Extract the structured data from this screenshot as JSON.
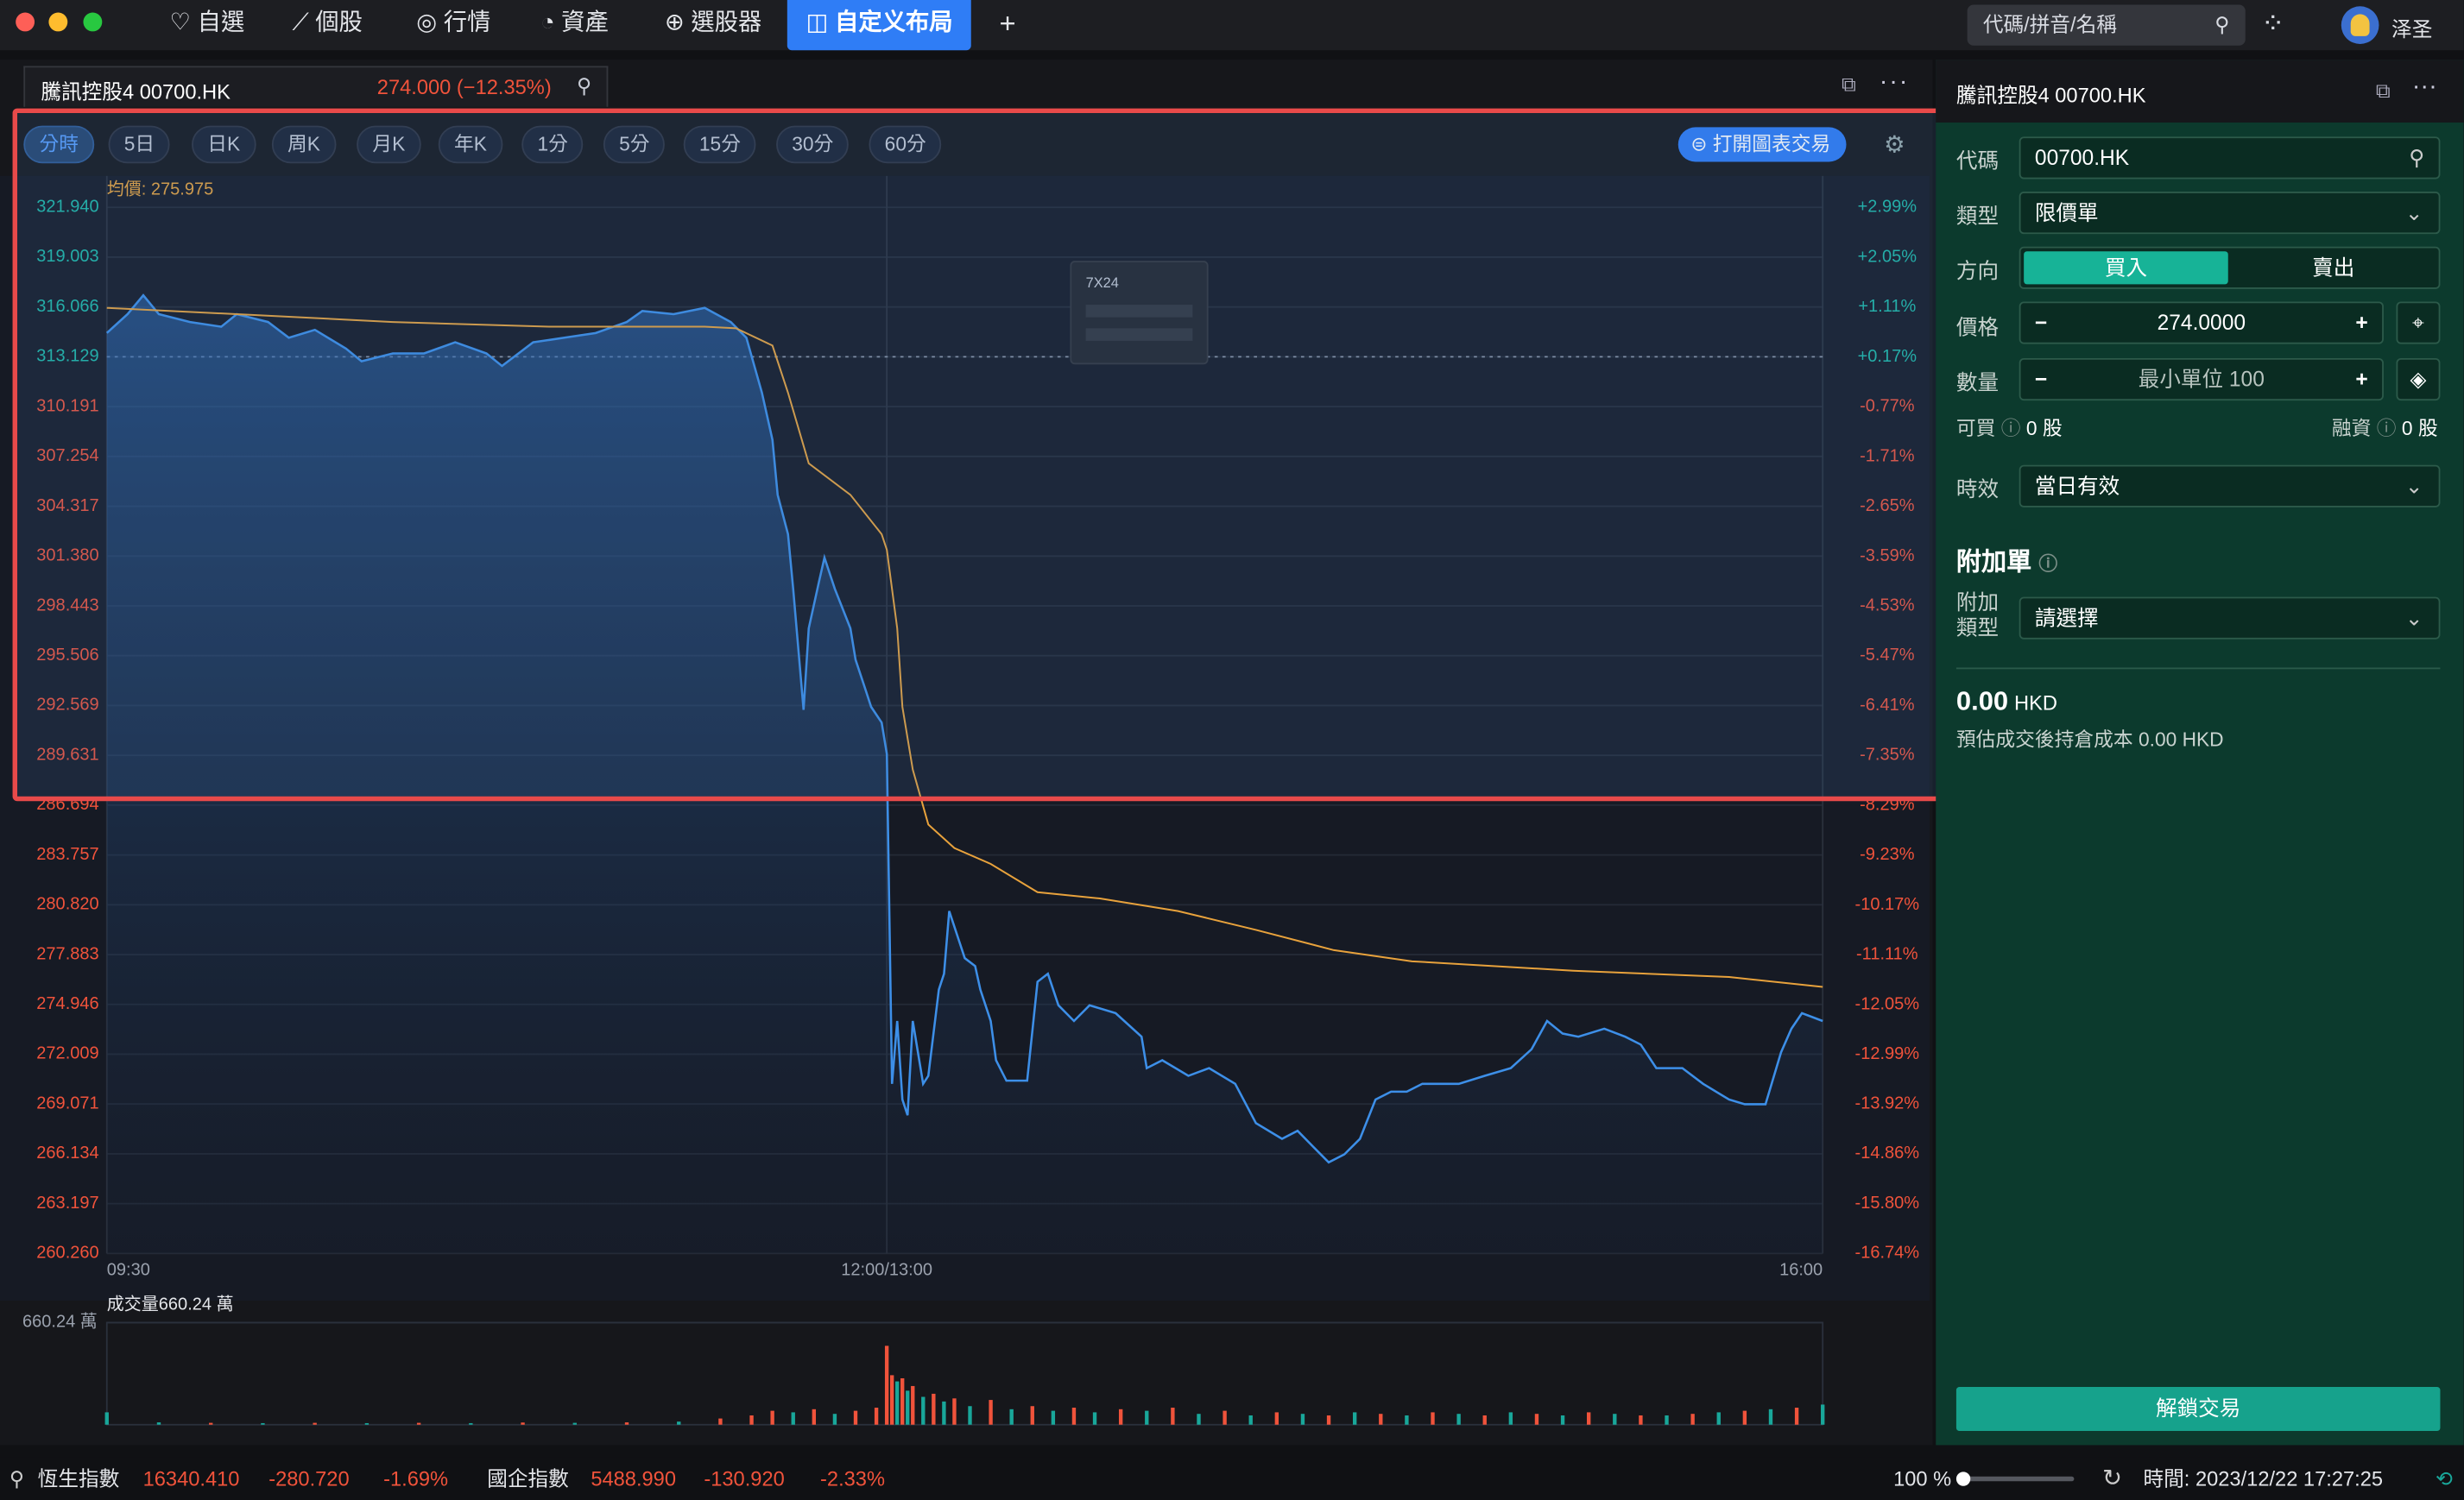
{
  "window": {
    "tabs": [
      "自選",
      "個股",
      "行情",
      "資產",
      "選股器",
      "自定义布局"
    ],
    "active_tab": 5,
    "search_placeholder": "代碼/拼音/名稱",
    "user": "泽圣"
  },
  "chart_panel": {
    "tab_title": "騰訊控股4 00700.HK",
    "tab_quote": "274.000 (−12.35%)",
    "periods": [
      "分時",
      "5日",
      "日K",
      "周K",
      "月K",
      "年K",
      "1分",
      "5分",
      "15分",
      "30分",
      "60分"
    ],
    "active_period": 0,
    "trade_button": "打開圖表交易",
    "popup_title": "7X24"
  },
  "chart_data": [
    {
      "type": "line",
      "base_value": 313.129,
      "up_color": "#1fb8a6",
      "down_color": "#f0533b",
      "xlim": [
        0,
        330
      ],
      "xticks": [
        {
          "value": 0,
          "label": "09:30"
        },
        {
          "value": 150,
          "label": "12:00/13:00"
        },
        {
          "value": 330,
          "label": "16:00"
        }
      ],
      "ylim": [
        260.26,
        321.94
      ],
      "yticks": [
        {
          "value": 321.94,
          "label": "321.940"
        },
        319.003,
        316.066,
        313.129,
        310.191,
        307.254,
        304.317,
        {
          "value": 301.38,
          "label": "301.380"
        },
        298.443,
        295.506,
        292.569,
        289.631,
        286.694,
        283.757,
        {
          "value": 280.82,
          "label": "280.820"
        },
        277.883,
        274.946,
        272.009,
        269.071,
        266.134,
        263.197,
        {
          "value": 260.26,
          "label": "260.260"
        }
      ],
      "y2lim": [
        -16.74,
        2.99
      ],
      "y2ticks": [
        {
          "value": 2.99,
          "label": "+2.99%"
        },
        {
          "value": 2.05,
          "label": "+2.05%"
        },
        {
          "value": 1.11,
          "label": "+1.11%"
        },
        {
          "value": 0.17,
          "label": "+0.17%"
        },
        {
          "value": -0.77,
          "label": "-0.77%"
        },
        {
          "value": -1.71,
          "label": "-1.71%"
        },
        {
          "value": -2.65,
          "label": "-2.65%"
        },
        {
          "value": -3.59,
          "label": "-3.59%"
        },
        {
          "value": -4.53,
          "label": "-4.53%"
        },
        {
          "value": -5.47,
          "label": "-5.47%"
        },
        {
          "value": -6.41,
          "label": "-6.41%"
        },
        {
          "value": -7.35,
          "label": "-7.35%"
        },
        {
          "value": -8.29,
          "label": "-8.29%"
        },
        {
          "value": -9.23,
          "label": "-9.23%"
        },
        {
          "value": -10.17,
          "label": "-10.17%"
        },
        {
          "value": -11.11,
          "label": "-11.11%"
        },
        {
          "value": -12.05,
          "label": "-12.05%"
        },
        {
          "value": -12.99,
          "label": "-12.99%"
        },
        {
          "value": -13.92,
          "label": "-13.92%"
        },
        {
          "value": -14.86,
          "label": "-14.86%"
        },
        {
          "value": -15.8,
          "label": "-15.80%"
        },
        {
          "value": -16.74,
          "label": "-16.74%"
        }
      ],
      "series": [
        {
          "color": "#3d8fe8",
          "x": [
            0,
            4,
            7,
            10,
            16,
            22,
            25,
            31,
            35,
            40,
            46,
            49,
            55,
            61,
            67,
            73,
            76,
            82,
            88,
            94,
            100,
            103,
            109,
            115,
            120,
            123,
            126,
            128,
            129,
            131,
            132,
            134,
            135,
            137,
            138,
            140,
            143,
            144,
            146,
            147,
            149,
            150,
            151,
            152,
            153,
            154,
            155,
            157,
            158,
            160,
            161,
            162,
            164,
            165,
            167,
            168,
            170,
            171,
            173,
            177,
            179,
            181,
            183,
            186,
            189,
            194,
            199,
            200,
            203,
            208,
            212,
            217,
            221,
            226,
            229,
            232,
            235,
            238,
            241,
            244,
            247,
            250,
            253,
            256,
            260,
            265,
            270,
            274,
            277,
            280,
            283,
            288,
            292,
            295,
            298,
            303,
            307,
            312,
            315,
            319,
            322,
            324,
            326,
            330
          ],
          "values": [
            314.53,
            315.64,
            316.75,
            315.64,
            315.18,
            314.9,
            315.64,
            315.18,
            314.25,
            314.72,
            313.61,
            312.86,
            313.33,
            313.33,
            313.98,
            313.33,
            312.59,
            313.98,
            314.25,
            314.53,
            315.18,
            315.83,
            315.64,
            316.01,
            315.18,
            314.25,
            311.01,
            308.23,
            304.99,
            302.67,
            299.44,
            292.31,
            297.12,
            299.9,
            301.29,
            299.44,
            297.12,
            295.27,
            293.42,
            292.49,
            291.56,
            289.71,
            270.26,
            273.97,
            269.34,
            268.41,
            273.97,
            270.26,
            270.73,
            275.82,
            276.75,
            280.45,
            278.6,
            277.67,
            277.21,
            275.82,
            273.97,
            271.65,
            270.45,
            270.45,
            276.28,
            276.75,
            274.89,
            273.97,
            274.89,
            274.43,
            273.04,
            271.19,
            271.65,
            270.73,
            271.19,
            270.26,
            267.95,
            267.02,
            267.49,
            266.56,
            265.63,
            266.1,
            267.02,
            269.34,
            269.8,
            269.8,
            270.26,
            270.26,
            270.26,
            270.73,
            271.19,
            272.3,
            273.97,
            273.23,
            273.04,
            273.51,
            273.04,
            272.58,
            271.19,
            271.19,
            270.26,
            269.34,
            269.06,
            269.06,
            272.12,
            273.51,
            274.43,
            273.97
          ]
        },
        {
          "name": "均價: 275.975",
          "color": "#e8a23c",
          "x": [
            0,
            25,
            55,
            85,
            115,
            121,
            128,
            131,
            135,
            143,
            149,
            150,
            152,
            153,
            155,
            158,
            163,
            170,
            179,
            191,
            206,
            221,
            236,
            251,
            282,
            312,
            330
          ],
          "values": [
            316.01,
            315.64,
            315.18,
            314.9,
            314.9,
            314.81,
            313.79,
            311.01,
            306.84,
            304.99,
            302.67,
            301.75,
            297.12,
            292.49,
            288.79,
            285.55,
            284.16,
            283.23,
            281.56,
            281.19,
            280.45,
            279.34,
            278.14,
            277.49,
            276.93,
            276.56,
            275.975
          ]
        }
      ]
    },
    {
      "type": "bar",
      "title": "成交量660.24 萬",
      "xlim": [
        0,
        330
      ],
      "ylim": [
        0,
        660.24
      ],
      "yticks": [
        {
          "value": 660.24,
          "label": "660.24 萬"
        }
      ],
      "x": [
        0,
        10,
        20,
        30,
        40,
        50,
        60,
        70,
        80,
        90,
        100,
        110,
        118,
        124,
        128,
        132,
        136,
        140,
        144,
        148,
        150,
        151,
        152,
        153,
        154,
        155,
        157,
        159,
        161,
        163,
        166,
        170,
        174,
        178,
        182,
        186,
        190,
        195,
        200,
        205,
        210,
        215,
        220,
        225,
        230,
        235,
        240,
        245,
        250,
        255,
        260,
        265,
        270,
        275,
        280,
        285,
        290,
        295,
        300,
        305,
        310,
        315,
        320,
        325,
        330
      ],
      "values": [
        80,
        15,
        12,
        10,
        12,
        10,
        12,
        10,
        14,
        12,
        15,
        20,
        40,
        60,
        90,
        80,
        100,
        70,
        90,
        110,
        510,
        320,
        280,
        300,
        220,
        250,
        180,
        200,
        150,
        170,
        120,
        160,
        100,
        120,
        90,
        110,
        80,
        100,
        90,
        110,
        70,
        90,
        60,
        80,
        70,
        60,
        80,
        70,
        60,
        80,
        70,
        60,
        80,
        70,
        60,
        80,
        70,
        60,
        60,
        70,
        80,
        90,
        100,
        110,
        130
      ],
      "colors": [
        "#19a79a",
        "#19a79a",
        "#f0533b",
        "#19a79a",
        "#f0533b",
        "#19a79a",
        "#f0533b",
        "#19a79a",
        "#f0533b",
        "#19a79a",
        "#f0533b",
        "#19a79a",
        "#f0533b",
        "#f0533b",
        "#f0533b",
        "#19a79a",
        "#f0533b",
        "#19a79a",
        "#f0533b",
        "#f0533b",
        "#f0533b",
        "#f0533b",
        "#19a79a",
        "#f0533b",
        "#19a79a",
        "#f0533b",
        "#19a79a",
        "#f0533b",
        "#19a79a",
        "#f0533b",
        "#19a79a",
        "#f0533b",
        "#19a79a",
        "#f0533b",
        "#19a79a",
        "#f0533b",
        "#19a79a",
        "#f0533b",
        "#19a79a",
        "#f0533b",
        "#19a79a",
        "#f0533b",
        "#19a79a",
        "#f0533b",
        "#19a79a",
        "#f0533b",
        "#19a79a",
        "#f0533b",
        "#19a79a",
        "#f0533b",
        "#19a79a",
        "#f0533b",
        "#19a79a",
        "#f0533b",
        "#19a79a",
        "#f0533b",
        "#19a79a",
        "#f0533b",
        "#19a79a",
        "#f0533b",
        "#19a79a",
        "#f0533b",
        "#19a79a",
        "#f0533b",
        "#19a79a"
      ]
    }
  ],
  "order_panel": {
    "title": "騰訊控股4 00700.HK",
    "code_label": "代碼",
    "code": "00700.HK",
    "type_label": "類型",
    "type": "限價單",
    "side_label": "方向",
    "buy": "買入",
    "sell": "賣出",
    "price_label": "價格",
    "price": "274.0000",
    "qty_label": "數量",
    "qty_placeholder": "最小單位 100",
    "buyable_label": "可買",
    "buyable": "0 股",
    "margin_label": "融資",
    "margin": "0 股",
    "validity_label": "時效",
    "validity": "當日有效",
    "attached_title": "附加單",
    "attached_label": "附加類型",
    "attached": "請選擇",
    "amount": "0.00",
    "currency": "HKD",
    "cost_note": "預估成交後持倉成本 0.00 HKD",
    "unlock_button": "解鎖交易"
  },
  "status_bar": {
    "indices": [
      {
        "name": "恆生指數",
        "last": "16340.410",
        "change": "-280.720",
        "pct": "-1.69%"
      },
      {
        "name": "國企指數",
        "last": "5488.990",
        "change": "-130.920",
        "pct": "-2.33%"
      }
    ],
    "zoom": "100 %",
    "time": "時間: 2023/12/22 17:27:25"
  }
}
